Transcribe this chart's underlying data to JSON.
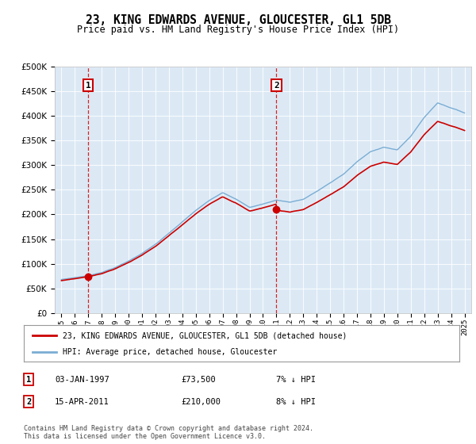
{
  "title": "23, KING EDWARDS AVENUE, GLOUCESTER, GL1 5DB",
  "subtitle": "Price paid vs. HM Land Registry's House Price Index (HPI)",
  "plot_bg_color": "#dce9f5",
  "sale1_year": 1997,
  "sale1_price": 73500,
  "sale2_year": 2011,
  "sale2_price": 210000,
  "hpi_color": "#7aadd4",
  "price_color": "#cc0000",
  "legend_line1": "23, KING EDWARDS AVENUE, GLOUCESTER, GL1 5DB (detached house)",
  "legend_line2": "HPI: Average price, detached house, Gloucester",
  "footer": "Contains HM Land Registry data © Crown copyright and database right 2024.\nThis data is licensed under the Open Government Licence v3.0.",
  "ylim": [
    0,
    500000
  ],
  "xlim": [
    1994.5,
    2025.5
  ],
  "yticks": [
    0,
    50000,
    100000,
    150000,
    200000,
    250000,
    300000,
    350000,
    400000,
    450000,
    500000
  ],
  "xticks": [
    1995,
    1996,
    1997,
    1998,
    1999,
    2000,
    2001,
    2002,
    2003,
    2004,
    2005,
    2006,
    2007,
    2008,
    2009,
    2010,
    2011,
    2012,
    2013,
    2014,
    2015,
    2016,
    2017,
    2018,
    2019,
    2020,
    2021,
    2022,
    2023,
    2024,
    2025
  ],
  "hpi_base_values": [
    68000,
    72000,
    76000,
    83000,
    93000,
    106000,
    122000,
    140000,
    162000,
    185000,
    208000,
    228000,
    245000,
    232000,
    215000,
    222000,
    230000,
    226000,
    232000,
    248000,
    265000,
    283000,
    308000,
    328000,
    338000,
    332000,
    360000,
    398000,
    428000,
    418000,
    408000
  ],
  "hpi_at_sale1": 76000,
  "hpi_at_sale2": 230000
}
